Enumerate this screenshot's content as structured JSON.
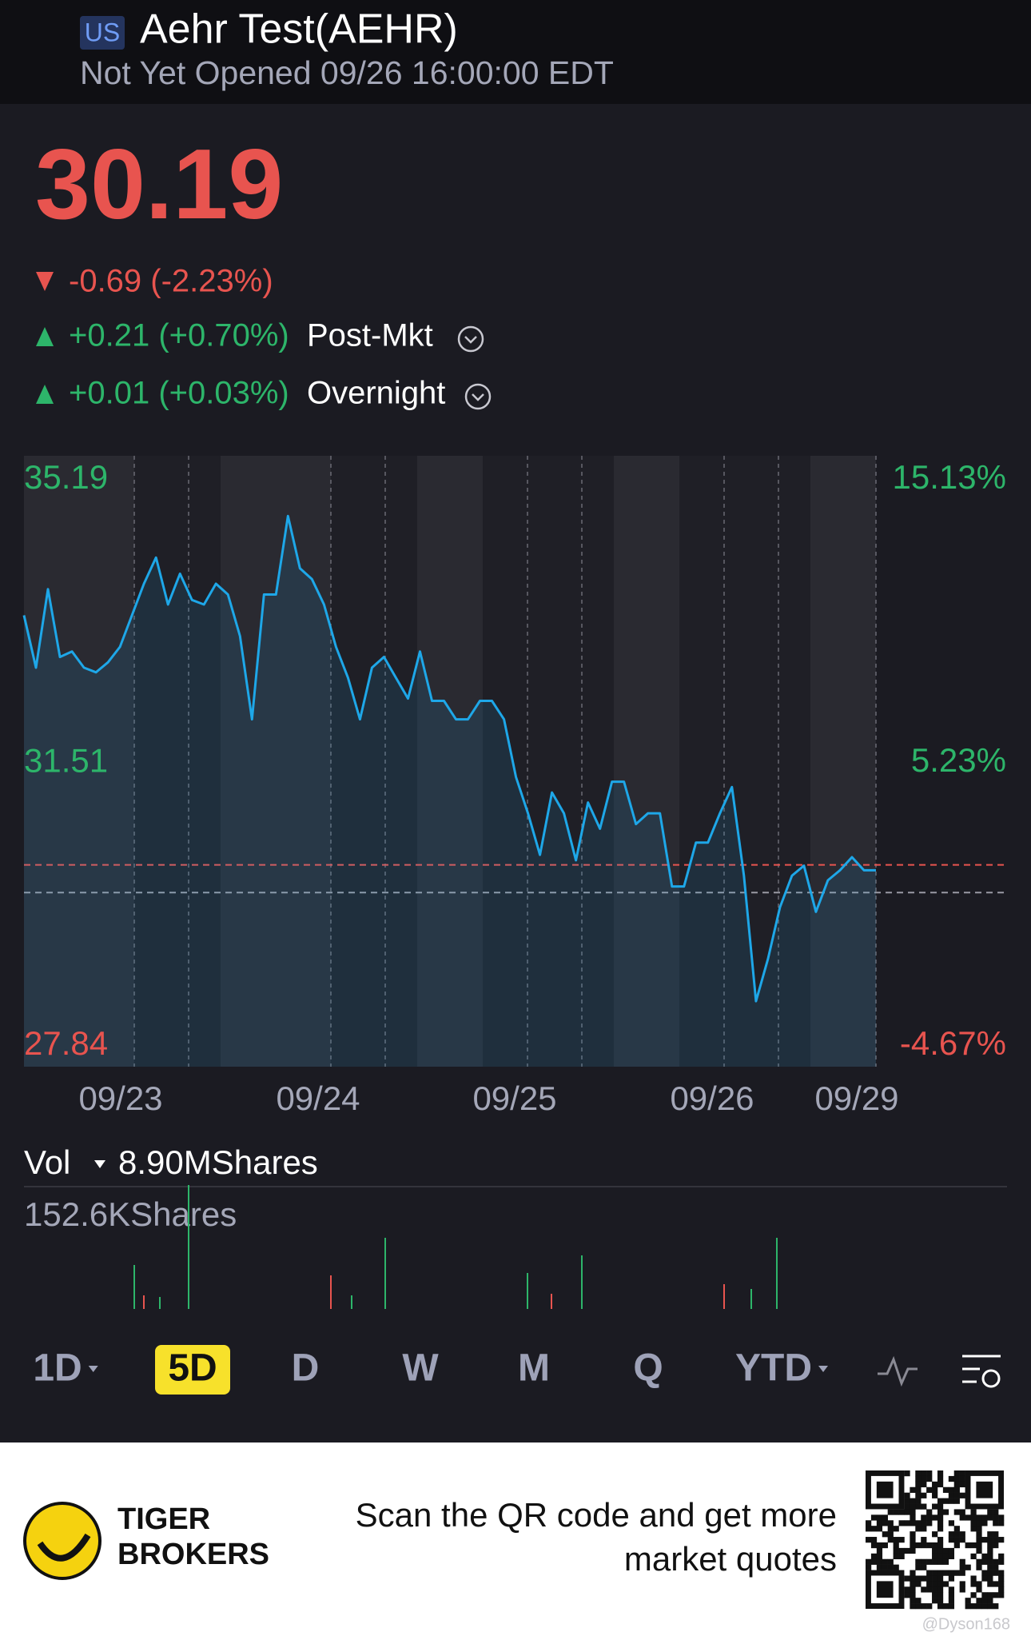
{
  "header": {
    "market": "US",
    "title": "Aehr Test(AEHR)",
    "status": "Not Yet Opened 09/26 16:00:00 EDT"
  },
  "quote": {
    "price": "30.19",
    "change": "-0.69 (-2.23%)",
    "post_market_change": "+0.21 (+0.70%)",
    "post_market_label": "Post-Mkt",
    "overnight_change": "+0.01 (+0.03%)",
    "overnight_label": "Overnight"
  },
  "chart_data": {
    "type": "line",
    "x_labels": [
      "09/23",
      "09/24",
      "09/25",
      "09/26",
      "09/29"
    ],
    "ylim": [
      27.84,
      35.19
    ],
    "yticks": [
      35.19,
      31.51,
      27.84
    ],
    "y2lim": [
      -4.67,
      15.13
    ],
    "y2ticks": [
      {
        "value": 15.13,
        "label": "15.13%"
      },
      {
        "value": 5.23,
        "label": "5.23%"
      },
      {
        "value": -4.67,
        "label": "-4.67%"
      }
    ],
    "price_line": 30.19,
    "prev_close_line": 29.83,
    "series": [
      {
        "color": "#1ea7e8",
        "values": [
          33.43,
          32.75,
          33.77,
          32.89,
          32.96,
          32.75,
          32.69,
          32.82,
          33.02,
          33.43,
          33.84,
          34.18,
          33.57,
          33.97,
          33.63,
          33.57,
          33.84,
          33.7,
          33.16,
          32.08,
          33.7,
          33.7,
          34.72,
          34.04,
          33.9,
          33.57,
          33.02,
          32.62,
          32.08,
          32.75,
          32.89,
          32.62,
          32.35,
          32.96,
          32.32,
          32.32,
          32.08,
          32.08,
          32.32,
          32.32,
          32.08,
          31.33,
          30.86,
          30.32,
          31.13,
          30.86,
          30.25,
          31.0,
          30.66,
          31.27,
          31.27,
          30.72,
          30.86,
          30.86,
          29.91,
          29.91,
          30.48,
          30.48,
          30.86,
          31.2,
          30.05,
          28.42,
          28.97,
          29.64,
          30.05,
          30.18,
          29.58,
          29.99,
          30.12,
          30.29,
          30.12,
          30.12
        ]
      }
    ]
  },
  "volume": {
    "label": "Vol",
    "total": "8.90MShares",
    "max": "152.6KShares"
  },
  "tabs": [
    "1D",
    "5D",
    "D",
    "W",
    "M",
    "Q",
    "YTD"
  ],
  "active_tab": 1,
  "footer": {
    "brand_line1": "TIGER",
    "brand_line2": "BROKERS",
    "cta_line1": "Scan the QR code and get more",
    "cta_line2": "market quotes",
    "watermark": "@Dyson168"
  }
}
